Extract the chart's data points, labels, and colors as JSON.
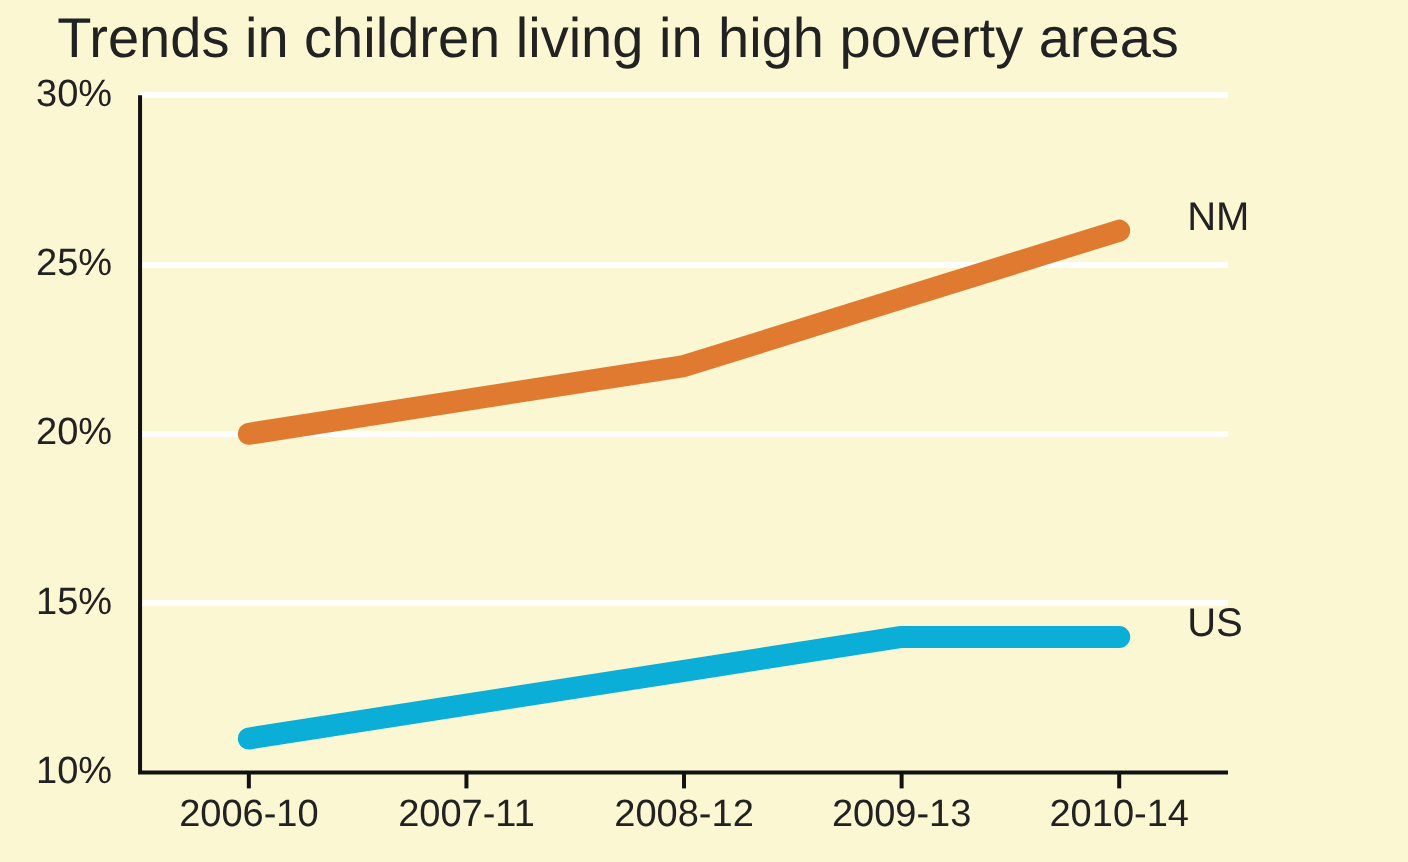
{
  "chart_data": {
    "type": "line",
    "title": "Trends in children living in high poverty areas",
    "categories": [
      "2006-10",
      "2007-11",
      "2008-12",
      "2009-13",
      "2010-14"
    ],
    "series": [
      {
        "name": "NM",
        "color": "#e07a30",
        "values": [
          20,
          21,
          22,
          24,
          26
        ]
      },
      {
        "name": "US",
        "color": "#0aaed6",
        "values": [
          11,
          12,
          13,
          14,
          14
        ]
      }
    ],
    "ylim": [
      10,
      30
    ],
    "yticks": [
      {
        "value": 10,
        "label": "10%"
      },
      {
        "value": 15,
        "label": "15%"
      },
      {
        "value": 20,
        "label": "20%"
      },
      {
        "value": 25,
        "label": "25%"
      },
      {
        "value": 30,
        "label": "30%"
      }
    ],
    "grid": "y",
    "legend": false,
    "marker": "none",
    "line_style": "solid"
  }
}
